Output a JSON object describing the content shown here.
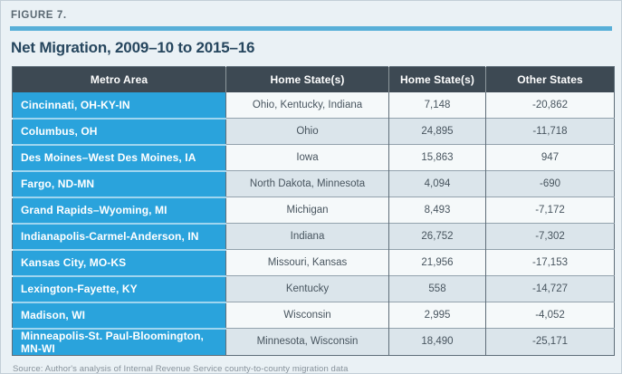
{
  "figure": {
    "label": "FIGURE 7.",
    "title": "Net Migration, 2009–10 to 2015–16",
    "source": "Source: Author's analysis of Internal Revenue Service county-to-county migration data"
  },
  "colors": {
    "page_bg": "#eaf1f5",
    "accent_blue": "#2aa3dc",
    "rule_blue": "#58afd8",
    "header_bg": "#3d4953",
    "row_odd_bg": "#f5f9fa",
    "row_even_bg": "#dbe5eb",
    "title_text": "#26465e"
  },
  "table": {
    "columns": [
      "Metro Area",
      "Home State(s)",
      "Home State(s)",
      "Other States"
    ],
    "rows": [
      {
        "metro": "Cincinnati, OH-KY-IN",
        "home_states": "Ohio, Kentucky, Indiana",
        "home_states_value": "7,148",
        "other_states_value": "-20,862"
      },
      {
        "metro": "Columbus, OH",
        "home_states": "Ohio",
        "home_states_value": "24,895",
        "other_states_value": "-11,718"
      },
      {
        "metro": "Des Moines–West Des Moines, IA",
        "home_states": "Iowa",
        "home_states_value": "15,863",
        "other_states_value": "947"
      },
      {
        "metro": "Fargo, ND-MN",
        "home_states": "North Dakota, Minnesota",
        "home_states_value": "4,094",
        "other_states_value": "-690"
      },
      {
        "metro": "Grand Rapids–Wyoming, MI",
        "home_states": "Michigan",
        "home_states_value": "8,493",
        "other_states_value": "-7,172"
      },
      {
        "metro": "Indianapolis-Carmel-Anderson, IN",
        "home_states": "Indiana",
        "home_states_value": "26,752",
        "other_states_value": "-7,302"
      },
      {
        "metro": "Kansas City, MO-KS",
        "home_states": "Missouri, Kansas",
        "home_states_value": "21,956",
        "other_states_value": "-17,153"
      },
      {
        "metro": "Lexington-Fayette, KY",
        "home_states": "Kentucky",
        "home_states_value": "558",
        "other_states_value": "-14,727"
      },
      {
        "metro": "Madison, WI",
        "home_states": "Wisconsin",
        "home_states_value": "2,995",
        "other_states_value": "-4,052"
      },
      {
        "metro": "Minneapolis-St. Paul-Bloomington, MN-WI",
        "home_states": "Minnesota, Wisconsin",
        "home_states_value": "18,490",
        "other_states_value": "-25,171"
      }
    ]
  },
  "chart_data": {
    "type": "table",
    "title": "Net Migration, 2009–10 to 2015–16",
    "figure_label": "FIGURE 7.",
    "columns": [
      "Metro Area",
      "Home State(s)",
      "Home State(s)",
      "Other States"
    ],
    "rows": [
      [
        "Cincinnati, OH-KY-IN",
        "Ohio, Kentucky, Indiana",
        7148,
        -20862
      ],
      [
        "Columbus, OH",
        "Ohio",
        24895,
        -11718
      ],
      [
        "Des Moines–West Des Moines, IA",
        "Iowa",
        15863,
        947
      ],
      [
        "Fargo, ND-MN",
        "North Dakota, Minnesota",
        4094,
        -690
      ],
      [
        "Grand Rapids–Wyoming, MI",
        "Michigan",
        8493,
        -7172
      ],
      [
        "Indianapolis-Carmel-Anderson, IN",
        "Indiana",
        26752,
        -7302
      ],
      [
        "Kansas City, MO-KS",
        "Missouri, Kansas",
        21956,
        -17153
      ],
      [
        "Lexington-Fayette, KY",
        "Kentucky",
        558,
        -14727
      ],
      [
        "Madison, WI",
        "Wisconsin",
        2995,
        -4052
      ],
      [
        "Minneapolis-St. Paul-Bloomington, MN-WI",
        "Minnesota, Wisconsin",
        18490,
        -25171
      ]
    ],
    "source": "Source: Author's analysis of Internal Revenue Service county-to-county migration data"
  }
}
